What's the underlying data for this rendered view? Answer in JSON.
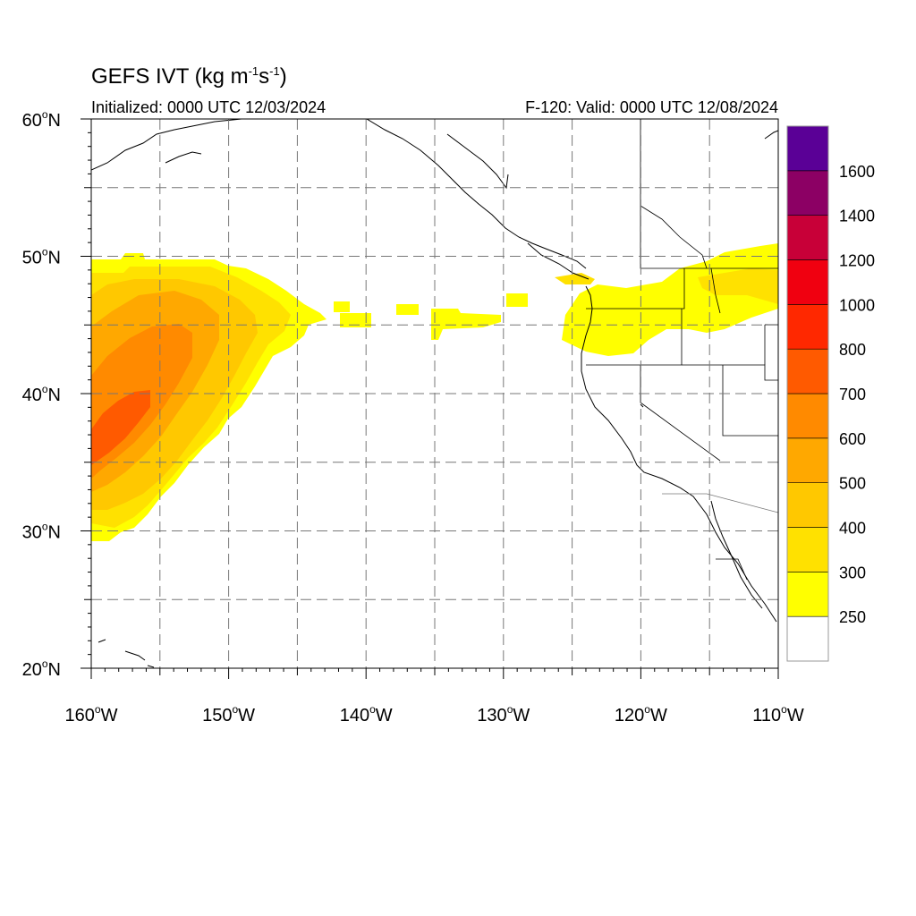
{
  "title": {
    "main": "GEFS IVT (kg m",
    "exp1": "-1",
    "mid": "s",
    "exp2": "-1",
    "end": ")"
  },
  "subtitle_left": "Initialized: 0000 UTC 12/03/2024",
  "subtitle_right": "F-120: Valid: 0000 UTC 12/08/2024",
  "map": {
    "lon_range": [
      -160,
      -110
    ],
    "lat_range": [
      20,
      60
    ],
    "lat_labels": [
      {
        "lat": 60,
        "text": "60",
        "hemi": "N"
      },
      {
        "lat": 50,
        "text": "50",
        "hemi": "N"
      },
      {
        "lat": 40,
        "text": "40",
        "hemi": "N"
      },
      {
        "lat": 30,
        "text": "30",
        "hemi": "N"
      },
      {
        "lat": 20,
        "text": "20",
        "hemi": "N"
      }
    ],
    "lon_labels": [
      {
        "lon": -160,
        "text": "160",
        "hemi": "W"
      },
      {
        "lon": -150,
        "text": "150",
        "hemi": "W"
      },
      {
        "lon": -140,
        "text": "140",
        "hemi": "W"
      },
      {
        "lon": -130,
        "text": "130",
        "hemi": "W"
      },
      {
        "lon": -120,
        "text": "120",
        "hemi": "W"
      },
      {
        "lon": -110,
        "text": "110",
        "hemi": "W"
      }
    ],
    "grid_lats": [
      25,
      30,
      35,
      40,
      45,
      50,
      55
    ],
    "grid_lons": [
      -155,
      -150,
      -145,
      -140,
      -135,
      -130,
      -125,
      -120,
      -115
    ]
  },
  "colorbar": {
    "labels": [
      "250",
      "300",
      "400",
      "500",
      "600",
      "700",
      "800",
      "1000",
      "1200",
      "1400",
      "1600"
    ],
    "colors": [
      "#ffffff",
      "#ffff00",
      "#ffe100",
      "#ffc800",
      "#ffa800",
      "#ff8a00",
      "#ff5a00",
      "#ff2800",
      "#f00010",
      "#c80038",
      "#8c0064",
      "#5a0096"
    ]
  }
}
